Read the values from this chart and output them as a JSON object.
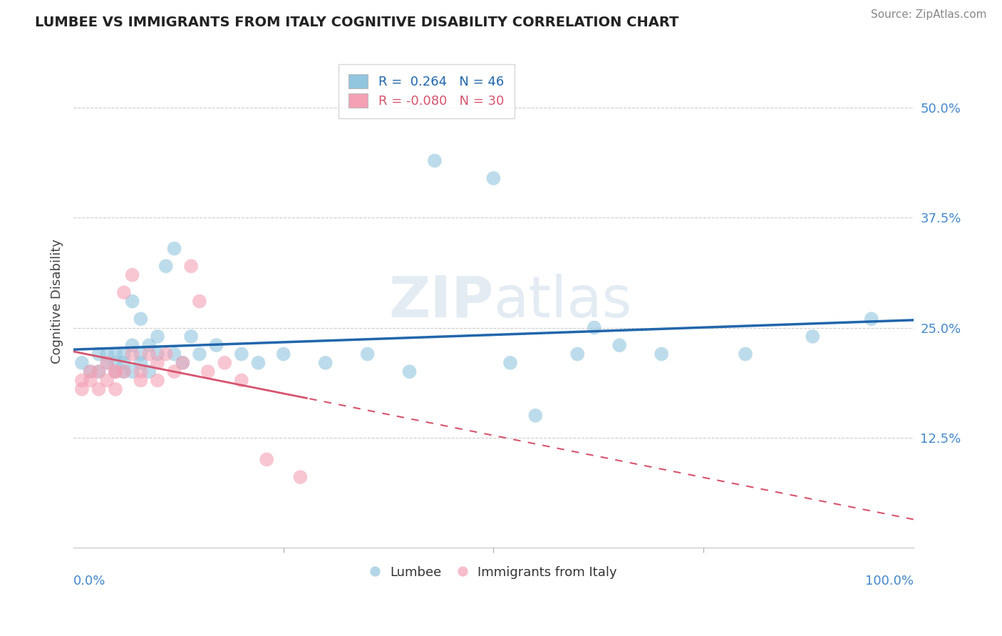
{
  "title": "LUMBEE VS IMMIGRANTS FROM ITALY COGNITIVE DISABILITY CORRELATION CHART",
  "source": "Source: ZipAtlas.com",
  "ylabel": "Cognitive Disability",
  "yticks": [
    0.125,
    0.25,
    0.375,
    0.5
  ],
  "ytick_labels": [
    "12.5%",
    "25.0%",
    "37.5%",
    "50.0%"
  ],
  "xlim": [
    0.0,
    1.0
  ],
  "ylim": [
    0.0,
    0.56
  ],
  "legend_r_blue": "0.264",
  "legend_n_blue": "46",
  "legend_r_pink": "-0.080",
  "legend_n_pink": "30",
  "blue_color": "#92c5de",
  "pink_color": "#f4a0b5",
  "line_blue_color": "#2166ac",
  "line_pink_color": "#d6546e",
  "watermark_color": "#c8d8e8",
  "lumbee_x": [
    0.01,
    0.02,
    0.03,
    0.03,
    0.04,
    0.04,
    0.05,
    0.05,
    0.05,
    0.06,
    0.06,
    0.06,
    0.07,
    0.07,
    0.07,
    0.08,
    0.08,
    0.08,
    0.09,
    0.09,
    0.1,
    0.1,
    0.11,
    0.12,
    0.12,
    0.13,
    0.14,
    0.15,
    0.17,
    0.2,
    0.22,
    0.25,
    0.3,
    0.35,
    0.4,
    0.43,
    0.5,
    0.52,
    0.55,
    0.6,
    0.62,
    0.65,
    0.7,
    0.8,
    0.88,
    0.95
  ],
  "lumbee_y": [
    0.21,
    0.2,
    0.22,
    0.2,
    0.22,
    0.21,
    0.21,
    0.22,
    0.2,
    0.21,
    0.22,
    0.2,
    0.23,
    0.28,
    0.2,
    0.22,
    0.26,
    0.21,
    0.2,
    0.23,
    0.22,
    0.24,
    0.32,
    0.34,
    0.22,
    0.21,
    0.24,
    0.22,
    0.23,
    0.22,
    0.21,
    0.22,
    0.21,
    0.22,
    0.2,
    0.44,
    0.42,
    0.21,
    0.15,
    0.22,
    0.25,
    0.23,
    0.22,
    0.22,
    0.24,
    0.26
  ],
  "italy_x": [
    0.01,
    0.01,
    0.02,
    0.02,
    0.03,
    0.03,
    0.04,
    0.04,
    0.05,
    0.05,
    0.05,
    0.06,
    0.06,
    0.07,
    0.07,
    0.08,
    0.08,
    0.09,
    0.1,
    0.1,
    0.11,
    0.12,
    0.13,
    0.14,
    0.15,
    0.16,
    0.18,
    0.2,
    0.23,
    0.27
  ],
  "italy_y": [
    0.19,
    0.18,
    0.2,
    0.19,
    0.2,
    0.18,
    0.21,
    0.19,
    0.2,
    0.18,
    0.2,
    0.29,
    0.2,
    0.31,
    0.22,
    0.19,
    0.2,
    0.22,
    0.19,
    0.21,
    0.22,
    0.2,
    0.21,
    0.32,
    0.28,
    0.2,
    0.21,
    0.19,
    0.1,
    0.08
  ]
}
